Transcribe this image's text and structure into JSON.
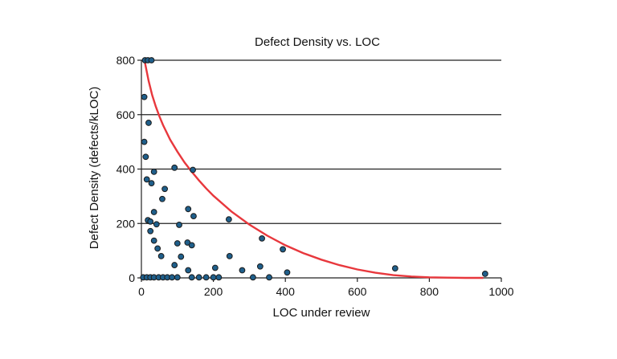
{
  "chart_data": {
    "type": "scatter",
    "title": "Defect Density vs. LOC",
    "xlabel": "LOC under review",
    "ylabel": "Defect Density (defects/kLOC)",
    "xlim": [
      0,
      1000
    ],
    "ylim": [
      0,
      800
    ],
    "x_ticks": [
      0,
      200,
      400,
      600,
      800,
      1000
    ],
    "y_ticks": [
      0,
      200,
      400,
      600,
      800
    ],
    "grid": "horizontal",
    "legend": "none",
    "colors": {
      "points": "#1f5f8b",
      "curve": "#e8383d",
      "grid": "#222222"
    },
    "series": [
      {
        "type": "scatter",
        "points": [
          {
            "x": 10,
            "y": 800
          },
          {
            "x": 18,
            "y": 800
          },
          {
            "x": 28,
            "y": 800
          },
          {
            "x": 8,
            "y": 665
          },
          {
            "x": 20,
            "y": 570
          },
          {
            "x": 8,
            "y": 500
          },
          {
            "x": 12,
            "y": 445
          },
          {
            "x": 35,
            "y": 390
          },
          {
            "x": 92,
            "y": 405
          },
          {
            "x": 143,
            "y": 397
          },
          {
            "x": 15,
            "y": 362
          },
          {
            "x": 28,
            "y": 348
          },
          {
            "x": 65,
            "y": 327
          },
          {
            "x": 58,
            "y": 290
          },
          {
            "x": 35,
            "y": 242
          },
          {
            "x": 130,
            "y": 253
          },
          {
            "x": 18,
            "y": 212
          },
          {
            "x": 25,
            "y": 207
          },
          {
            "x": 42,
            "y": 197
          },
          {
            "x": 105,
            "y": 195
          },
          {
            "x": 145,
            "y": 227
          },
          {
            "x": 243,
            "y": 215
          },
          {
            "x": 25,
            "y": 172
          },
          {
            "x": 35,
            "y": 137
          },
          {
            "x": 100,
            "y": 127
          },
          {
            "x": 128,
            "y": 130
          },
          {
            "x": 140,
            "y": 120
          },
          {
            "x": 335,
            "y": 145
          },
          {
            "x": 45,
            "y": 108
          },
          {
            "x": 393,
            "y": 105
          },
          {
            "x": 55,
            "y": 80
          },
          {
            "x": 110,
            "y": 78
          },
          {
            "x": 245,
            "y": 80
          },
          {
            "x": 92,
            "y": 47
          },
          {
            "x": 205,
            "y": 37
          },
          {
            "x": 330,
            "y": 42
          },
          {
            "x": 705,
            "y": 35
          },
          {
            "x": 130,
            "y": 28
          },
          {
            "x": 280,
            "y": 28
          },
          {
            "x": 405,
            "y": 20
          },
          {
            "x": 955,
            "y": 15
          },
          {
            "x": 5,
            "y": 2
          },
          {
            "x": 15,
            "y": 2
          },
          {
            "x": 25,
            "y": 2
          },
          {
            "x": 35,
            "y": 2
          },
          {
            "x": 48,
            "y": 2
          },
          {
            "x": 60,
            "y": 2
          },
          {
            "x": 72,
            "y": 2
          },
          {
            "x": 85,
            "y": 2
          },
          {
            "x": 100,
            "y": 2
          },
          {
            "x": 140,
            "y": 2
          },
          {
            "x": 160,
            "y": 2
          },
          {
            "x": 180,
            "y": 2
          },
          {
            "x": 200,
            "y": 2
          },
          {
            "x": 215,
            "y": 2
          },
          {
            "x": 310,
            "y": 2
          },
          {
            "x": 355,
            "y": 2
          }
        ]
      },
      {
        "type": "line",
        "points": [
          {
            "x": 10,
            "y": 790
          },
          {
            "x": 20,
            "y": 724
          },
          {
            "x": 30,
            "y": 672
          },
          {
            "x": 40,
            "y": 630
          },
          {
            "x": 50,
            "y": 594
          },
          {
            "x": 60,
            "y": 562
          },
          {
            "x": 80,
            "y": 508
          },
          {
            "x": 100,
            "y": 464
          },
          {
            "x": 120,
            "y": 424
          },
          {
            "x": 140,
            "y": 390
          },
          {
            "x": 160,
            "y": 358
          },
          {
            "x": 180,
            "y": 329
          },
          {
            "x": 200,
            "y": 302
          },
          {
            "x": 250,
            "y": 244
          },
          {
            "x": 300,
            "y": 196
          },
          {
            "x": 350,
            "y": 155
          },
          {
            "x": 400,
            "y": 120
          },
          {
            "x": 450,
            "y": 91
          },
          {
            "x": 500,
            "y": 67
          },
          {
            "x": 550,
            "y": 47
          },
          {
            "x": 600,
            "y": 31
          },
          {
            "x": 650,
            "y": 19
          },
          {
            "x": 700,
            "y": 10
          },
          {
            "x": 750,
            "y": 5
          },
          {
            "x": 800,
            "y": 2
          },
          {
            "x": 850,
            "y": 1
          },
          {
            "x": 900,
            "y": 0
          },
          {
            "x": 950,
            "y": 0
          }
        ]
      }
    ]
  }
}
